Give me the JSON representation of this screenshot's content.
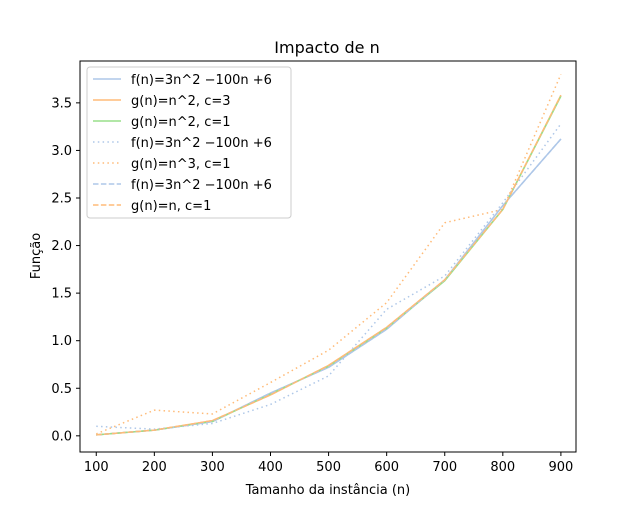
{
  "chart_data": {
    "type": "line",
    "title": "Impacto de n",
    "xlabel": "Tamanho da instância (n)",
    "ylabel": "Função",
    "xlim": [
      72,
      926
    ],
    "ylim": [
      -0.17,
      3.94
    ],
    "x_ticks": [
      100,
      200,
      300,
      400,
      500,
      600,
      700,
      800,
      900
    ],
    "y_ticks": [
      0.0,
      0.5,
      1.0,
      1.5,
      2.0,
      2.5,
      3.0,
      3.5
    ],
    "y_tick_labels": [
      "0.0",
      "0.5",
      "1.0",
      "1.5",
      "2.0",
      "2.5",
      "3.0",
      "3.5"
    ],
    "grid": false,
    "legend_position": "upper-left",
    "x": [
      100,
      200,
      300,
      400,
      500,
      600,
      700,
      800,
      900
    ],
    "series": [
      {
        "name": "f(n)=3n^2 −100n +6",
        "color": "#aec7e8",
        "style": "solid",
        "values": [
          0.01,
          0.06,
          0.15,
          0.45,
          0.72,
          1.12,
          1.64,
          2.42,
          3.12
        ]
      },
      {
        "name": "g(n)=n^2, c=3",
        "color": "#ffbb78",
        "style": "solid",
        "values": [
          0.01,
          0.06,
          0.16,
          0.43,
          0.74,
          1.14,
          1.64,
          2.38,
          3.58
        ]
      },
      {
        "name": "g(n)=n^2, c=1",
        "color": "#98df8a",
        "style": "solid",
        "values": [
          0.01,
          0.06,
          0.15,
          0.44,
          0.73,
          1.13,
          1.63,
          2.38,
          3.57
        ]
      },
      {
        "name": "f(n)=3n^2 −100n +6",
        "color": "#aec7e8",
        "style": "dotted",
        "values": [
          0.1,
          0.07,
          0.13,
          0.33,
          0.63,
          1.33,
          1.68,
          2.45,
          3.28
        ]
      },
      {
        "name": "g(n)=n^3, c=1",
        "color": "#ffbb78",
        "style": "dotted",
        "values": [
          0.02,
          0.27,
          0.23,
          0.56,
          0.9,
          1.4,
          2.24,
          2.38,
          3.8
        ]
      },
      {
        "name": "f(n)=3n^2 −100n +6",
        "color": "#aec7e8",
        "style": "dashed",
        "values": [
          0.01,
          0.06,
          0.15,
          0.45,
          0.72,
          1.12,
          1.64,
          2.42,
          3.12
        ]
      },
      {
        "name": "g(n)=n, c=1",
        "color": "#ffbb78",
        "style": "dashed",
        "values": [
          0.01,
          0.06,
          0.16,
          0.43,
          0.74,
          1.14,
          1.64,
          2.38,
          3.58
        ]
      }
    ]
  }
}
